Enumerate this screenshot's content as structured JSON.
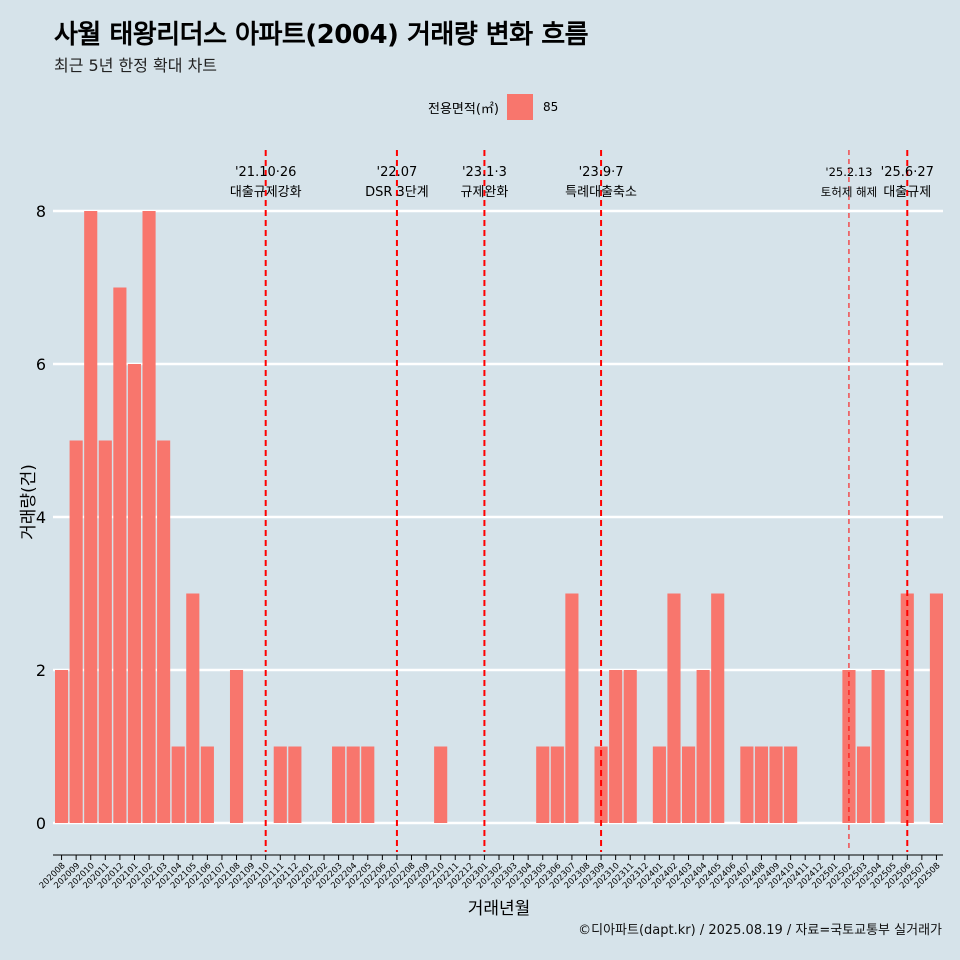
{
  "header": {
    "title": "사월 태왕리더스 아파트(2004) 거래량 변화 흐름",
    "subtitle": "최근 5년 한정 확대 차트"
  },
  "legend": {
    "title": "전용면적(㎡)",
    "items": [
      {
        "label": "85",
        "color": "#f8766d"
      }
    ]
  },
  "caption": "©디아파트(dapt.kr) / 2025.08.19 / 자료=국토교통부 실거래가",
  "colors": {
    "background": "#d6e3ea",
    "bar": "#f8766d",
    "event_line": "#ff0000",
    "grid": "#ffffff"
  },
  "chart_data": {
    "type": "bar",
    "xlabel": "거래년월",
    "ylabel": "거래량(건)",
    "ylim": [
      0,
      8
    ],
    "yticks": [
      0,
      2,
      4,
      6,
      8
    ],
    "grid": true,
    "legend_position": "top",
    "categories": [
      "202008",
      "202009",
      "202010",
      "202011",
      "202012",
      "202101",
      "202102",
      "202103",
      "202104",
      "202105",
      "202106",
      "202107",
      "202108",
      "202109",
      "202110",
      "202111",
      "202112",
      "202201",
      "202202",
      "202203",
      "202204",
      "202205",
      "202206",
      "202207",
      "202208",
      "202209",
      "202210",
      "202211",
      "202212",
      "202301",
      "202302",
      "202303",
      "202304",
      "202305",
      "202306",
      "202307",
      "202308",
      "202309",
      "202310",
      "202311",
      "202312",
      "202401",
      "202402",
      "202403",
      "202404",
      "202405",
      "202406",
      "202407",
      "202408",
      "202409",
      "202410",
      "202411",
      "202412",
      "202501",
      "202502",
      "202503",
      "202504",
      "202505",
      "202506",
      "202507",
      "202508"
    ],
    "series": [
      {
        "name": "85",
        "values": [
          2,
          5,
          8,
          5,
          7,
          6,
          8,
          5,
          1,
          3,
          1,
          0,
          2,
          0,
          0,
          1,
          1,
          0,
          0,
          1,
          1,
          1,
          0,
          0,
          0,
          0,
          1,
          0,
          0,
          0,
          0,
          0,
          0,
          1,
          1,
          3,
          0,
          1,
          2,
          2,
          0,
          1,
          3,
          1,
          2,
          3,
          0,
          1,
          1,
          1,
          1,
          0,
          0,
          0,
          2,
          1,
          2,
          0,
          3,
          0,
          3
        ]
      }
    ],
    "events": [
      {
        "date": "202110",
        "label_top": "'21.10·26",
        "label_bottom": "대출규제강화",
        "style": "major"
      },
      {
        "date": "202207",
        "label_top": "'22.07",
        "label_bottom": "DSR 3단계",
        "style": "major"
      },
      {
        "date": "202301",
        "label_top": "'23.1·3",
        "label_bottom": "규제완화",
        "style": "major"
      },
      {
        "date": "202309",
        "label_top": "'23.9·7",
        "label_bottom": "특례대출축소",
        "style": "major"
      },
      {
        "date": "202502",
        "label_top": "'25.2.13",
        "label_bottom": "토허제 해제",
        "style": "minor"
      },
      {
        "date": "202506",
        "label_top": "'25.6·27",
        "label_bottom": "대출규제",
        "style": "major"
      }
    ]
  }
}
